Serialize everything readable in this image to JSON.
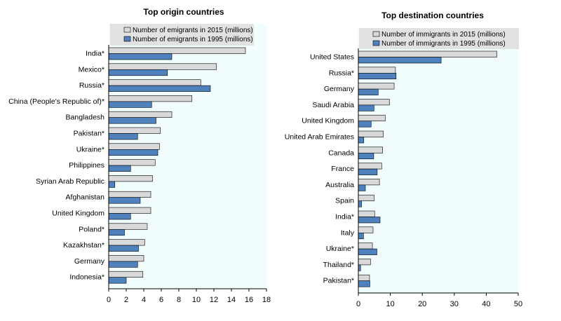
{
  "chart_data": [
    {
      "type": "bar",
      "orientation": "horizontal",
      "title": "Top origin countries",
      "categories": [
        "India*",
        "Mexico*",
        "Russia*",
        "China (People's Republic of)*",
        "Bangladesh",
        "Pakistan*",
        "Ukraine*",
        "Philippines",
        "Syrian Arab Republic",
        "Afghanistan",
        "United Kingdom",
        "Poland*",
        "Kazakhstan*",
        "Germany",
        "Indonesia*"
      ],
      "series": [
        {
          "name": "Number of emigrants in 2015 (millions)",
          "color": "#d9d9d9",
          "values": [
            15.6,
            12.3,
            10.5,
            9.5,
            7.2,
            5.9,
            5.8,
            5.3,
            5.0,
            4.8,
            4.8,
            4.4,
            4.1,
            4.0,
            3.9
          ]
        },
        {
          "name": "Number of emigrants in 1995 (millions)",
          "color": "#4f81bd",
          "values": [
            7.2,
            6.7,
            11.6,
            4.9,
            5.4,
            3.3,
            5.6,
            2.5,
            0.7,
            3.6,
            2.5,
            1.8,
            3.4,
            3.3,
            2.0
          ]
        }
      ],
      "xlim": [
        0,
        18
      ],
      "xticks": [
        0,
        2,
        4,
        6,
        8,
        10,
        12,
        14,
        16,
        18
      ],
      "legend_position": "top",
      "grid": false
    },
    {
      "type": "bar",
      "orientation": "horizontal",
      "title": "Top destination countries",
      "categories": [
        "United States",
        "Russia*",
        "Germany",
        "Saudi Arabia",
        "United Kingdom",
        "United Arab Emirates",
        "Canada",
        "France",
        "Australia",
        "Spain",
        "India*",
        "Italy",
        "Ukraine*",
        "Thailand*",
        "Pakistan*"
      ],
      "series": [
        {
          "name": "Number of immigrants in 2015 (millions)",
          "color": "#d9d9d9",
          "values": [
            43.3,
            11.6,
            11.2,
            9.7,
            8.4,
            7.8,
            7.6,
            7.3,
            6.6,
            4.9,
            5.1,
            4.6,
            4.4,
            3.8,
            3.5
          ]
        },
        {
          "name": "Number of immigrants in 1995 (millions)",
          "color": "#4f81bd",
          "values": [
            25.9,
            11.8,
            6.2,
            4.9,
            4.0,
            1.7,
            4.8,
            5.9,
            2.2,
            1.0,
            6.8,
            1.6,
            5.8,
            0.7,
            3.6
          ]
        }
      ],
      "xlim": [
        0,
        50
      ],
      "xticks": [
        0,
        10,
        20,
        30,
        40,
        50
      ],
      "legend_position": "top",
      "grid": false
    }
  ]
}
